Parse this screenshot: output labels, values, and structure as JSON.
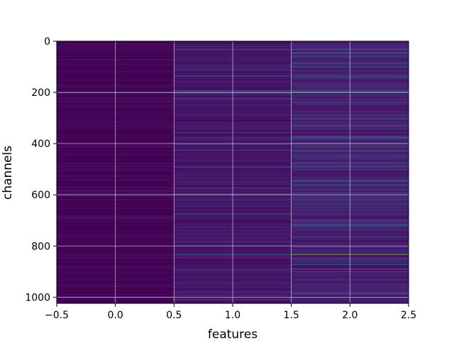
{
  "chart_data": {
    "type": "heatmap",
    "title": "",
    "xlabel": "features",
    "ylabel": "channels",
    "xlim": [
      -0.5,
      2.5
    ],
    "ylim": [
      1024,
      0
    ],
    "y_axis_inverted": true,
    "colormap": "viridis",
    "grid": true,
    "n_rows": 1024,
    "columns": [
      0,
      1,
      2
    ],
    "x_ticks": [
      -0.5,
      0.0,
      0.5,
      1.0,
      1.5,
      2.0,
      2.5
    ],
    "x_tick_labels": [
      "−0.5",
      "0.0",
      "0.5",
      "1.0",
      "1.5",
      "2.0",
      "2.5"
    ],
    "y_ticks": [
      0,
      200,
      400,
      600,
      800,
      1000
    ],
    "y_tick_labels": [
      "0",
      "200",
      "400",
      "600",
      "800",
      "1000"
    ],
    "column_base_level": [
      0.02,
      0.05,
      0.07
    ],
    "highlight_rows": [
      {
        "row": 30,
        "values": [
          0.05,
          0.35,
          0.6
        ]
      },
      {
        "row": 100,
        "values": [
          0.03,
          0.2,
          0.5
        ]
      },
      {
        "row": 200,
        "values": [
          0.25,
          0.2,
          0.3
        ]
      },
      {
        "row": 290,
        "values": [
          0.02,
          0.2,
          0.45
        ]
      },
      {
        "row": 595,
        "values": [
          0.1,
          0.35,
          0.3
        ]
      },
      {
        "row": 832,
        "values": [
          0.05,
          0.45,
          0.85
        ]
      },
      {
        "row": 890,
        "values": [
          0.03,
          0.25,
          0.4
        ]
      },
      {
        "row": 985,
        "values": [
          0.03,
          0.15,
          0.35
        ]
      }
    ]
  },
  "colors": {
    "background": "#ffffff",
    "grid": "#d8d8d8",
    "heat_low": "#440154",
    "heat_high": "#a0da39"
  }
}
